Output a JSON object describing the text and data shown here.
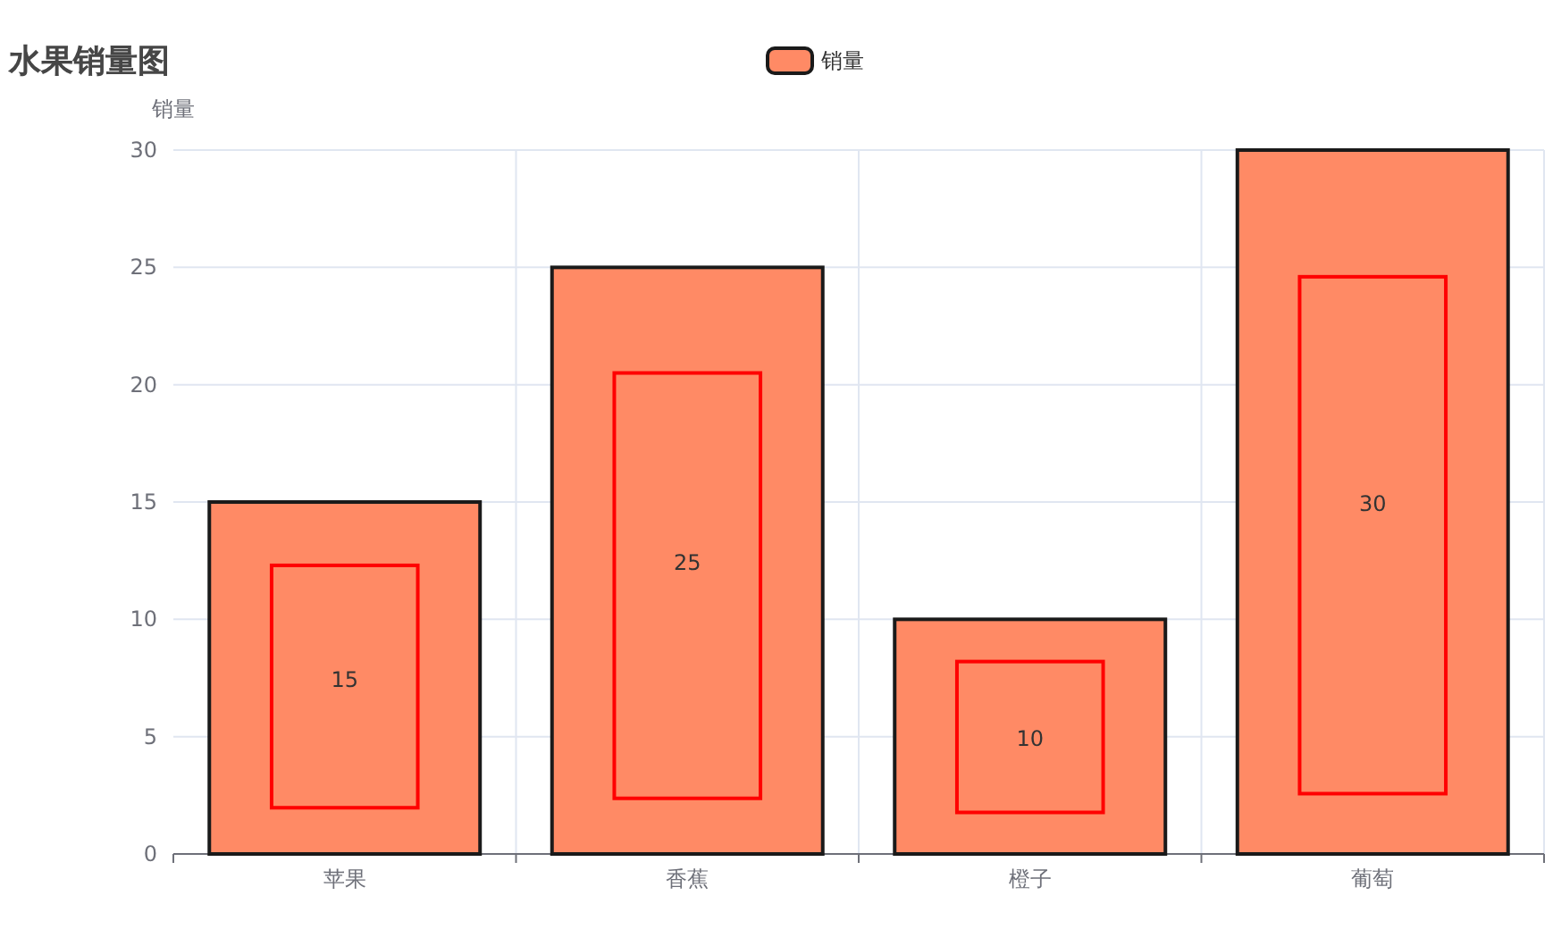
{
  "chart_data": {
    "type": "bar",
    "title": "水果销量图",
    "ylabel": "销量",
    "categories": [
      "苹果",
      "香蕉",
      "橙子",
      "葡萄"
    ],
    "series": [
      {
        "name": "销量",
        "color": "#ff8a65",
        "values": [
          15,
          25,
          10,
          30
        ]
      }
    ],
    "ylim": [
      0,
      30
    ],
    "yticks": [
      0,
      5,
      10,
      15,
      20,
      25,
      30
    ],
    "grid": true,
    "legend": "top",
    "data_labels": true
  }
}
